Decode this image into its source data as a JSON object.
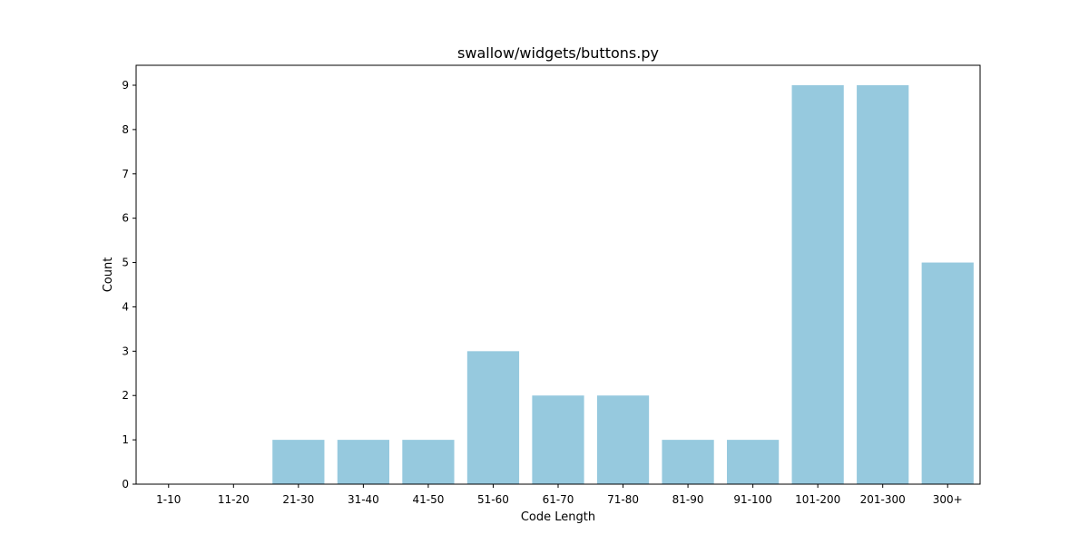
{
  "chart_data": {
    "type": "bar",
    "title": "swallow/widgets/buttons.py",
    "xlabel": "Code Length",
    "ylabel": "Count",
    "categories": [
      "1-10",
      "11-20",
      "21-30",
      "31-40",
      "41-50",
      "51-60",
      "61-70",
      "71-80",
      "81-90",
      "91-100",
      "101-200",
      "201-300",
      "300+"
    ],
    "values": [
      0,
      0,
      1,
      1,
      1,
      3,
      2,
      2,
      1,
      1,
      9,
      9,
      5
    ],
    "ylim": [
      0,
      9.45
    ],
    "yticks": [
      0,
      1,
      2,
      3,
      4,
      5,
      6,
      7,
      8,
      9
    ],
    "grid": false,
    "bar_color": "#96c9de"
  }
}
